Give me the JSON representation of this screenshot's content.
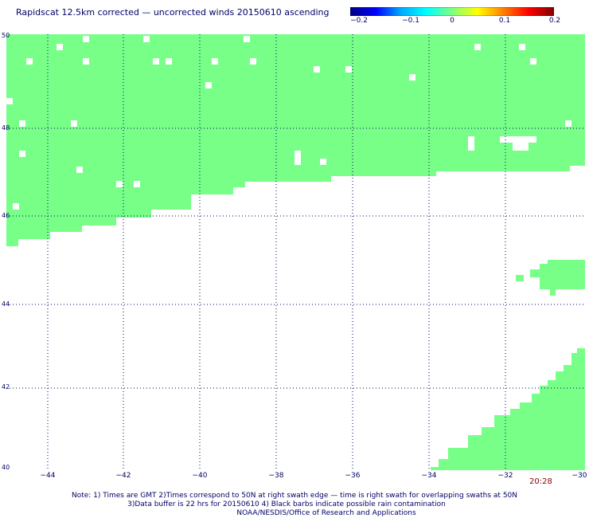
{
  "title": "Rapidscat 12.5km corrected — uncorrected winds 20150610 ascending",
  "colorbar": {
    "ticks": [
      "−0.2",
      "−0.1",
      "0",
      "0.1",
      "0.2"
    ],
    "colors": [
      "#000080",
      "#0000ff",
      "#00aaff",
      "#00ffff",
      "#7fff7f",
      "#ffff00",
      "#ff8000",
      "#ff0000",
      "#800000"
    ]
  },
  "map": {
    "fill_color": "#77ff88",
    "lat_labels": [
      "50",
      "48",
      "46",
      "44",
      "42",
      "40"
    ],
    "lon_labels": [
      "−44",
      "−42",
      "−40",
      "−38",
      "−36",
      "−34",
      "−32",
      "−30"
    ],
    "time_label": "20:28"
  },
  "notes": {
    "line1": "Note: 1) Times are GMT 2)Times correspond to 50N at right swath edge — time is right swath for overlapping swaths at 50N",
    "line2": "3)Data buffer is 22 hrs for 20150610 4) Black barbs indicate possible rain contamination",
    "line3": "NOAA/NESDIS/Office of Research and Applications"
  }
}
